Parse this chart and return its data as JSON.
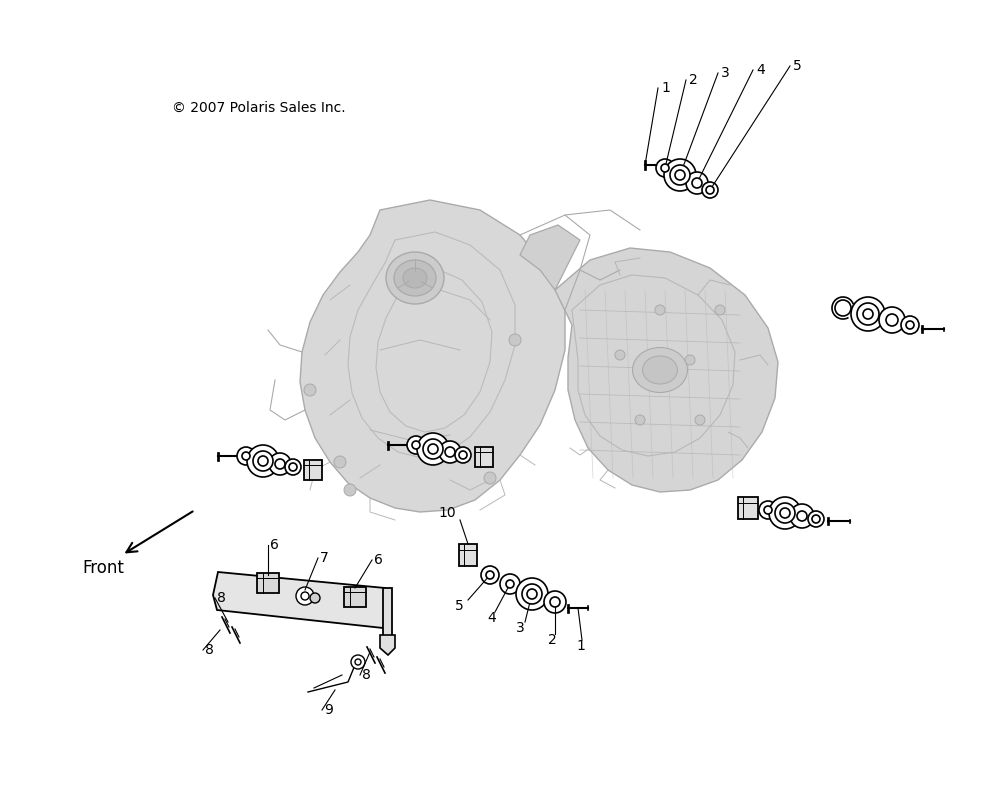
{
  "fig_width": 10.0,
  "fig_height": 8.08,
  "bg_color": "#ffffff",
  "lc": "#000000",
  "gray_fill": "#d2d2d2",
  "gray_edge": "#aaaaaa",
  "copyright": "© 2007 Polaris Sales Inc."
}
